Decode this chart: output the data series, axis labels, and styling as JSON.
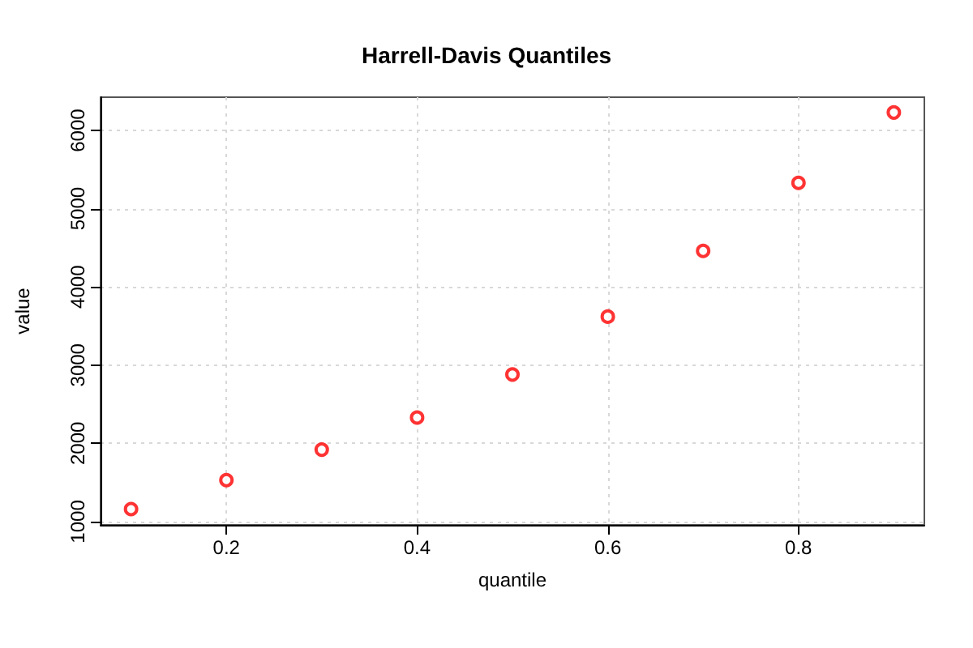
{
  "chart_data": {
    "type": "scatter",
    "title": "Harrell-Davis Quantiles",
    "xlabel": "quantile",
    "ylabel": "value",
    "x": [
      0.1,
      0.2,
      0.3,
      0.4,
      0.5,
      0.6,
      0.7,
      0.8,
      0.9
    ],
    "series": [
      {
        "color": "#ff0000",
        "values": [
          1160,
          1530,
          1920,
          2330,
          2880,
          3620,
          4460,
          5330,
          6230
        ]
      }
    ],
    "xlim": [
      0.068,
      0.932
    ],
    "ylim": [
      958,
      6425
    ],
    "xticks": [
      0.2,
      0.4,
      0.6,
      0.8
    ],
    "yticks": [
      1000,
      2000,
      3000,
      4000,
      5000,
      6000
    ],
    "grid": true,
    "marker": "circle"
  }
}
